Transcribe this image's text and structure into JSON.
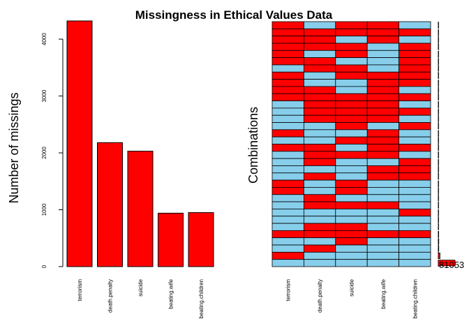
{
  "title": "Missingness in Ethical Values Data",
  "colors": {
    "missing": "#ff0000",
    "present": "#87ceeb",
    "outline": "#000000"
  },
  "chart_data": [
    {
      "type": "bar",
      "ylabel": "Number of missings",
      "xlabel": "",
      "categories": [
        "terrorism",
        "death.penalty",
        "suicide",
        "beating.wife",
        "beating.children"
      ],
      "values": [
        4320,
        2180,
        2030,
        940,
        950
      ],
      "ylim": [
        0,
        4320
      ],
      "yticks": [
        "0",
        "1000",
        "2000",
        "3000",
        "4000"
      ],
      "grid": false
    },
    {
      "type": "heatmap",
      "ylabel": "Combinations",
      "columns": [
        "terrorism",
        "death.penalty",
        "suicide",
        "beating.wife",
        "beating.children"
      ],
      "pattern_rows": [
        [
          1,
          0,
          1,
          1,
          0
        ],
        [
          1,
          1,
          1,
          1,
          1
        ],
        [
          1,
          1,
          0,
          1,
          0
        ],
        [
          1,
          1,
          1,
          0,
          1
        ],
        [
          1,
          0,
          1,
          0,
          1
        ],
        [
          1,
          1,
          0,
          0,
          1
        ],
        [
          0,
          1,
          1,
          0,
          1
        ],
        [
          1,
          0,
          1,
          1,
          1
        ],
        [
          1,
          0,
          0,
          1,
          1
        ],
        [
          1,
          1,
          0,
          1,
          0
        ],
        [
          1,
          1,
          1,
          1,
          1
        ],
        [
          0,
          1,
          1,
          1,
          0
        ],
        [
          0,
          1,
          1,
          1,
          1
        ],
        [
          0,
          1,
          1,
          1,
          0
        ],
        [
          0,
          0,
          1,
          0,
          1
        ],
        [
          1,
          0,
          0,
          1,
          0
        ],
        [
          0,
          0,
          1,
          1,
          0
        ],
        [
          1,
          1,
          0,
          1,
          1
        ],
        [
          0,
          1,
          1,
          1,
          0
        ],
        [
          0,
          1,
          0,
          0,
          1
        ],
        [
          0,
          0,
          0,
          1,
          1
        ],
        [
          0,
          1,
          0,
          1,
          1
        ],
        [
          1,
          0,
          1,
          0,
          0
        ],
        [
          1,
          0,
          1,
          0,
          0
        ],
        [
          0,
          1,
          0,
          0,
          0
        ],
        [
          0,
          1,
          1,
          1,
          0
        ],
        [
          0,
          0,
          0,
          0,
          1
        ],
        [
          0,
          0,
          0,
          0,
          0
        ],
        [
          0,
          1,
          1,
          0,
          0
        ],
        [
          1,
          1,
          1,
          1,
          1
        ],
        [
          0,
          0,
          1,
          0,
          0
        ],
        [
          0,
          1,
          0,
          0,
          0
        ],
        [
          1,
          0,
          0,
          0,
          0
        ],
        [
          0,
          0,
          0,
          0,
          0
        ]
      ],
      "row_frequencies": [
        0.5,
        0.5,
        0.5,
        0.5,
        0.5,
        0.5,
        0.5,
        0.5,
        0.5,
        0.5,
        0.5,
        0.5,
        0.5,
        0.5,
        0.5,
        0.5,
        0.5,
        0.5,
        0.5,
        0.5,
        0.5,
        0.5,
        0.5,
        0.5,
        0.5,
        0.6,
        0.8,
        1.5,
        2,
        2.5,
        3,
        3,
        10,
        100
      ],
      "count_label": "81053"
    }
  ]
}
